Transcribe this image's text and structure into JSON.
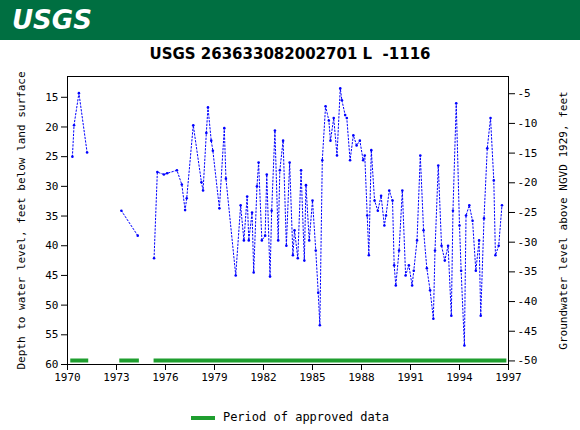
{
  "header": "USGS",
  "chart_data": {
    "type": "line",
    "title": "USGS 263633082002701 L  -1116",
    "ylabel": "Depth to water level, feet below land surface",
    "y2label": "Groundwater level above NGVD 1929, feet",
    "xlim": [
      1970,
      1997
    ],
    "xticks": [
      1970,
      1973,
      1976,
      1979,
      1982,
      1985,
      1988,
      1991,
      1994,
      1997
    ],
    "ylim": [
      60,
      11.5
    ],
    "yticks": [
      15,
      20,
      25,
      30,
      35,
      40,
      45,
      50,
      55,
      60
    ],
    "y2lim": [
      -50.6,
      -2.1
    ],
    "y2ticks": [
      -5,
      -10,
      -15,
      -20,
      -25,
      -30,
      -35,
      -40,
      -45,
      -50
    ],
    "grid": false,
    "legend": "bottom",
    "x": [
      1970.3,
      1970.4,
      1970.7,
      1971.2,
      1972.3,
      1973.3,
      1974.3,
      1974.8,
      1975.3,
      1975.5,
      1975.9,
      1976.1,
      1976.7,
      1977.0,
      1977.2,
      1977.3,
      1977.7,
      1978.2,
      1978.3,
      1978.5,
      1978.6,
      1978.8,
      1978.9,
      1979.3,
      1979.6,
      1979.7,
      1980.3,
      1980.6,
      1980.8,
      1981.0,
      1981.1,
      1981.3,
      1981.4,
      1981.6,
      1981.7,
      1981.9,
      1982.1,
      1982.2,
      1982.4,
      1982.5,
      1982.7,
      1982.9,
      1983.0,
      1983.2,
      1983.4,
      1983.6,
      1983.8,
      1983.9,
      1984.1,
      1984.3,
      1984.5,
      1984.6,
      1984.8,
      1985.0,
      1985.2,
      1985.35,
      1985.45,
      1985.6,
      1985.8,
      1986.0,
      1986.1,
      1986.3,
      1986.5,
      1986.7,
      1986.8,
      1987.0,
      1987.1,
      1987.3,
      1987.5,
      1987.7,
      1987.9,
      1988.1,
      1988.2,
      1988.35,
      1988.45,
      1988.6,
      1988.8,
      1989.0,
      1989.2,
      1989.4,
      1989.5,
      1989.7,
      1989.9,
      1990.0,
      1990.1,
      1990.3,
      1990.5,
      1990.7,
      1990.9,
      1991.1,
      1991.2,
      1991.4,
      1991.6,
      1991.8,
      1992.0,
      1992.2,
      1992.4,
      1992.5,
      1992.7,
      1992.9,
      1993.1,
      1993.3,
      1993.5,
      1993.6,
      1993.8,
      1994.0,
      1994.1,
      1994.3,
      1994.4,
      1994.6,
      1994.8,
      1995.0,
      1995.2,
      1995.3,
      1995.5,
      1995.7,
      1995.9,
      1996.1,
      1996.2,
      1996.4,
      1996.6
    ],
    "series": [
      {
        "color": "#0000ff",
        "marker": "circle",
        "line_style": "dotted",
        "values": [
          25,
          19.7,
          14.3,
          24.3,
          null,
          34.1,
          38.3,
          null,
          42.1,
          27.6,
          28,
          27.8,
          27.3,
          29.7,
          34,
          32,
          19.7,
          29.3,
          30.7,
          21,
          16.7,
          22.3,
          24,
          33.7,
          20.2,
          28.7,
          45,
          33.2,
          39.1,
          31.7,
          39.1,
          34.4,
          44.5,
          30,
          26,
          39.1,
          38.3,
          28,
          45.2,
          34.1,
          20.6,
          39.1,
          27.3,
          22.3,
          40,
          26,
          41.6,
          37.4,
          42.1,
          27.3,
          42.5,
          29.8,
          39.1,
          32.4,
          40.8,
          47.9,
          53.4,
          25.6,
          16.5,
          18.9,
          22.3,
          18.5,
          24.8,
          13.5,
          15.5,
          18,
          18.5,
          25.6,
          21.4,
          23.1,
          22.3,
          25.6,
          24.8,
          34.9,
          41.6,
          23.9,
          32.4,
          34.1,
          31.6,
          36.6,
          34.9,
          30.7,
          32.4,
          43.3,
          46.7,
          40.8,
          30.7,
          45,
          43.3,
          46.7,
          44.2,
          39.1,
          24.8,
          37.4,
          43.8,
          47.5,
          52.3,
          40.8,
          26.5,
          40,
          42.5,
          40,
          51.8,
          34.1,
          16,
          36.6,
          44.2,
          56.8,
          34.9,
          33.2,
          35.8,
          44.2,
          39.1,
          51.8,
          35.4,
          23.6,
          18.5,
          29,
          41.6,
          40,
          33.2
        ]
      }
    ],
    "approved_periods": {
      "name": "Period of approved data",
      "color": "#1f9e2f",
      "ranges": [
        [
          1970.2,
          1971.3
        ],
        [
          1973.2,
          1974.4
        ],
        [
          1975.3,
          1996.9
        ]
      ]
    }
  }
}
